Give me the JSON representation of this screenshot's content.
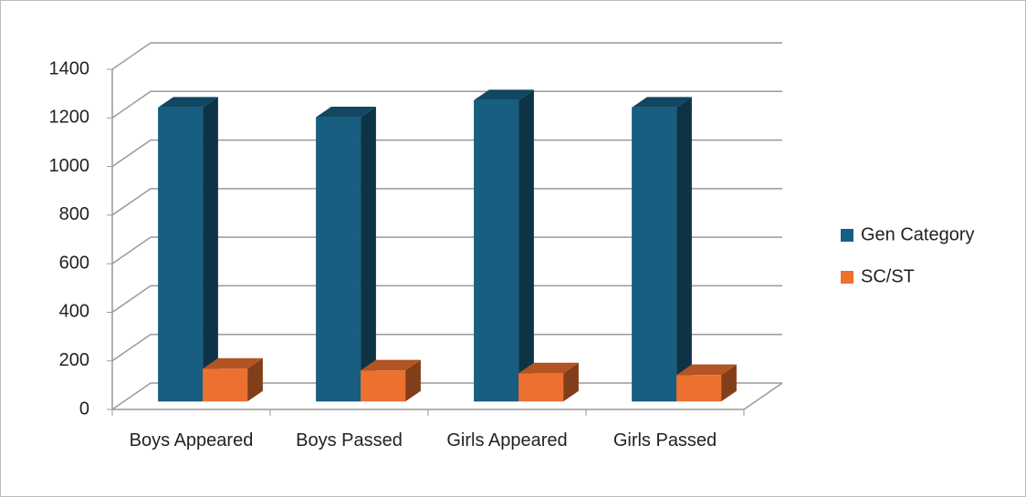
{
  "chart_data": {
    "type": "bar3d",
    "categories": [
      "Boys Appeared",
      "Boys Passed",
      "Girls Appeared",
      "Girls Passed"
    ],
    "series": [
      {
        "name": "Gen Category",
        "color": "#175e80",
        "values": [
          1210,
          1170,
          1240,
          1210
        ]
      },
      {
        "name": "SC/ST",
        "color": "#ec7130",
        "values": [
          135,
          128,
          116,
          109
        ]
      }
    ],
    "ylim": [
      0,
      1400
    ],
    "yticks": [
      0,
      200,
      400,
      600,
      800,
      1000,
      1200,
      1400
    ],
    "grid": true,
    "legend": "right"
  }
}
